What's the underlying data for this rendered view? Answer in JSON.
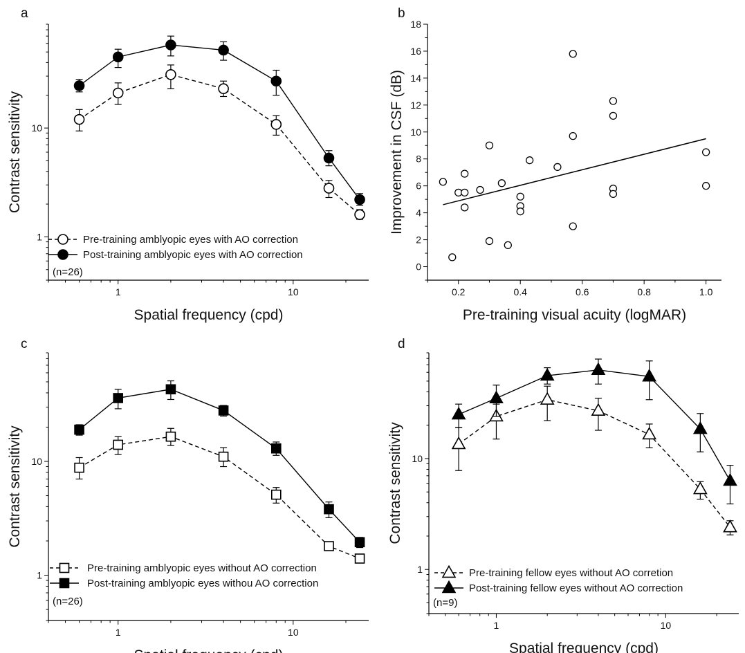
{
  "chart_data": [
    {
      "panel": "a",
      "type": "line",
      "xscale": "log",
      "yscale": "log",
      "xlabel": "Spatial frequency (cpd)",
      "ylabel": "Contrast sensitivity",
      "xlim": [
        0.4,
        27
      ],
      "ylim": [
        0.4,
        90
      ],
      "xticks": [
        {
          "v": 1,
          "label": "1"
        },
        {
          "v": 10,
          "label": "10"
        }
      ],
      "yticks": [
        {
          "v": 1,
          "label": "1"
        },
        {
          "v": 10,
          "label": "10"
        }
      ],
      "marker": "circle",
      "note": "(n=26)",
      "x": [
        0.6,
        1,
        2,
        4,
        8,
        16,
        24
      ],
      "series": [
        {
          "name": "Pre-training amblyopic eyes with AO correction",
          "filled": false,
          "dashed": true,
          "values": [
            12,
            21,
            31,
            23,
            10.8,
            2.8,
            1.6
          ],
          "err": [
            [
              9.4,
              14.8
            ],
            [
              16.5,
              26
            ],
            [
              23,
              38
            ],
            [
              19.5,
              27
            ],
            [
              8.6,
              13
            ],
            [
              2.3,
              3.3
            ],
            [
              1.45,
              1.78
            ]
          ]
        },
        {
          "name": "Post-training amblyopic eyes with AO correction",
          "filled": true,
          "dashed": false,
          "values": [
            24.5,
            45,
            58,
            52,
            27,
            5.3,
            2.2
          ],
          "err": [
            [
              21.5,
              28
            ],
            [
              36,
              53
            ],
            [
              46,
              70
            ],
            [
              42,
              62
            ],
            [
              20,
              34
            ],
            [
              4.5,
              6.2
            ],
            [
              1.95,
              2.5
            ]
          ]
        }
      ]
    },
    {
      "panel": "b",
      "type": "scatter",
      "xlabel": "Pre-training visual acuity (logMAR)",
      "ylabel": "Improvement in CSF (dB)",
      "xlim": [
        0.1,
        1.05
      ],
      "ylim": [
        -1,
        18
      ],
      "xticks": [
        {
          "v": 0.2,
          "label": "0.2"
        },
        {
          "v": 0.4,
          "label": "0.4"
        },
        {
          "v": 0.6,
          "label": "0.6"
        },
        {
          "v": 0.8,
          "label": "0.8"
        },
        {
          "v": 1.0,
          "label": "1.0"
        }
      ],
      "yticks": [
        {
          "v": 0,
          "label": "0"
        },
        {
          "v": 2,
          "label": "2"
        },
        {
          "v": 4,
          "label": "4"
        },
        {
          "v": 6,
          "label": "6"
        },
        {
          "v": 8,
          "label": "8"
        },
        {
          "v": 10,
          "label": "10"
        },
        {
          "v": 12,
          "label": "12"
        },
        {
          "v": 14,
          "label": "14"
        },
        {
          "v": 16,
          "label": "16"
        },
        {
          "v": 18,
          "label": "18"
        }
      ],
      "points": [
        [
          0.15,
          6.3
        ],
        [
          0.18,
          0.7
        ],
        [
          0.2,
          5.5
        ],
        [
          0.22,
          5.5
        ],
        [
          0.22,
          6.9
        ],
        [
          0.22,
          4.4
        ],
        [
          0.27,
          5.7
        ],
        [
          0.3,
          9.0
        ],
        [
          0.3,
          1.9
        ],
        [
          0.34,
          6.2
        ],
        [
          0.36,
          1.6
        ],
        [
          0.4,
          5.2
        ],
        [
          0.4,
          4.5
        ],
        [
          0.4,
          4.1
        ],
        [
          0.43,
          7.9
        ],
        [
          0.52,
          7.4
        ],
        [
          0.57,
          15.8
        ],
        [
          0.57,
          9.7
        ],
        [
          0.57,
          3.0
        ],
        [
          0.7,
          12.3
        ],
        [
          0.7,
          11.2
        ],
        [
          0.7,
          5.8
        ],
        [
          0.7,
          5.4
        ],
        [
          1.0,
          8.5
        ],
        [
          1.0,
          6.0
        ]
      ],
      "fit_line": {
        "x": [
          0.15,
          1.0
        ],
        "y": [
          4.6,
          9.5
        ]
      }
    },
    {
      "panel": "c",
      "type": "line",
      "xscale": "log",
      "yscale": "log",
      "xlabel": "Spatial frequency (cpd)",
      "ylabel": "Contrast sensitivity",
      "xlim": [
        0.4,
        27
      ],
      "ylim": [
        0.4,
        90
      ],
      "xticks": [
        {
          "v": 1,
          "label": "1"
        },
        {
          "v": 10,
          "label": "10"
        }
      ],
      "yticks": [
        {
          "v": 1,
          "label": "1"
        },
        {
          "v": 10,
          "label": "10"
        }
      ],
      "marker": "square",
      "note": "(n=26)",
      "x": [
        0.6,
        1,
        2,
        4,
        8,
        16,
        24
      ],
      "series": [
        {
          "name": "Pre-training amblyopic eyes without AO correction",
          "filled": false,
          "dashed": true,
          "values": [
            8.8,
            14,
            16.5,
            11,
            5.1,
            1.8,
            1.4
          ],
          "err": [
            [
              7,
              10.8
            ],
            [
              11.5,
              16.5
            ],
            [
              13.8,
              19.5
            ],
            [
              9,
              13.2
            ],
            [
              4.3,
              5.9
            ],
            [
              1.65,
              1.95
            ],
            [
              1.3,
              1.5
            ]
          ]
        },
        {
          "name": "Post-training amblyopic eyes withou AO correction",
          "filled": true,
          "dashed": false,
          "values": [
            19,
            36,
            43,
            28,
            13,
            3.8,
            1.95
          ],
          "err": [
            [
              17,
              21
            ],
            [
              29,
              43
            ],
            [
              35,
              51
            ],
            [
              25,
              31
            ],
            [
              11.3,
              14.8
            ],
            [
              3.2,
              4.4
            ],
            [
              1.75,
              2.15
            ]
          ]
        }
      ]
    },
    {
      "panel": "d",
      "type": "line",
      "xscale": "log",
      "yscale": "log",
      "xlabel": "Spatial frequency (cpd)",
      "ylabel": "Contrast sensitivity",
      "xlim": [
        0.4,
        27
      ],
      "ylim": [
        0.4,
        90
      ],
      "xticks": [
        {
          "v": 1,
          "label": "1"
        },
        {
          "v": 10,
          "label": "10"
        }
      ],
      "yticks": [
        {
          "v": 1,
          "label": "1"
        },
        {
          "v": 10,
          "label": "10"
        }
      ],
      "marker": "triangle",
      "note": "(n=9)",
      "x": [
        0.6,
        1,
        2,
        4,
        8,
        16,
        24
      ],
      "series": [
        {
          "name": "Pre-training fellow eyes without AO corretion",
          "filled": false,
          "dashed": true,
          "values": [
            13.5,
            24,
            34,
            27,
            16.5,
            5.3,
            2.4
          ],
          "err": [
            [
              7.8,
              19
            ],
            [
              15,
              31
            ],
            [
              22,
              45
            ],
            [
              18,
              35
            ],
            [
              12.5,
              20.5
            ],
            [
              4.3,
              6.2
            ],
            [
              2.05,
              2.75
            ]
          ]
        },
        {
          "name": "Post-training fellow eyes without AO correction",
          "filled": true,
          "dashed": false,
          "values": [
            25,
            35,
            56,
            63,
            55,
            18.5,
            6.3
          ],
          "err": [
            [
              19,
              31
            ],
            [
              24,
              46
            ],
            [
              47,
              66
            ],
            [
              47,
              79
            ],
            [
              34,
              76
            ],
            [
              11.5,
              25.5
            ],
            [
              3.9,
              8.7
            ]
          ]
        }
      ]
    }
  ]
}
